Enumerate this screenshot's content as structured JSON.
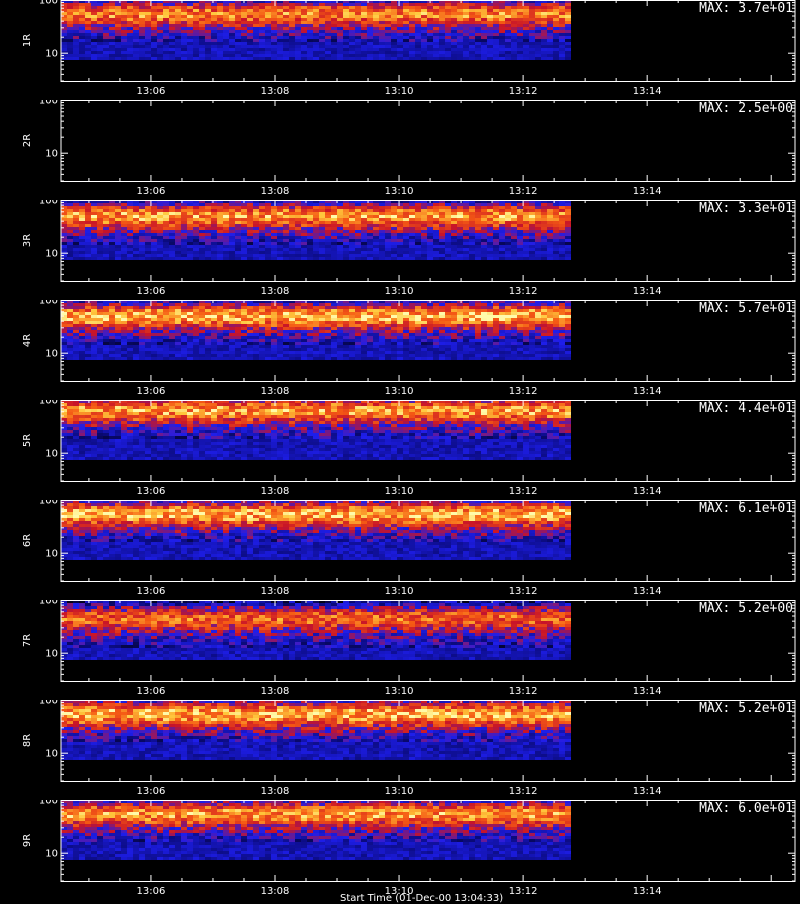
{
  "footer_text": "Start Time (01-Dec-00 13:04:33)",
  "chart_data": [
    {
      "type": "heatmap",
      "panel_label": "1R",
      "max_label": "MAX: 3.7e+01",
      "x_ticks": [
        "13:06",
        "13:08",
        "13:10",
        "13:12",
        "13:14"
      ],
      "y_ticks": [
        "100",
        "10"
      ],
      "yscale": "log",
      "xlim": [
        "13:04:33",
        "13:16:23"
      ],
      "ylim": [
        3,
        100
      ],
      "data_end": "13:12:43",
      "band_center": 60,
      "band_strength": 0.75
    },
    {
      "type": "heatmap",
      "panel_label": "2R",
      "max_label": "MAX: 2.5e+00",
      "x_ticks": [
        "13:06",
        "13:08",
        "13:10",
        "13:12",
        "13:14"
      ],
      "y_ticks": [
        "100",
        "10"
      ],
      "yscale": "log",
      "xlim": [
        "13:04:33",
        "13:16:23"
      ],
      "ylim": [
        3,
        100
      ],
      "data_end": "13:12:43",
      "band_center": 60,
      "band_strength": 0
    },
    {
      "type": "heatmap",
      "panel_label": "3R",
      "max_label": "MAX: 3.3e+01",
      "x_ticks": [
        "13:06",
        "13:08",
        "13:10",
        "13:12",
        "13:14"
      ],
      "y_ticks": [
        "100",
        "10"
      ],
      "yscale": "log",
      "xlim": [
        "13:04:33",
        "13:16:23"
      ],
      "ylim": [
        3,
        100
      ],
      "data_end": "13:12:43",
      "band_center": 55,
      "band_strength": 0.8
    },
    {
      "type": "heatmap",
      "panel_label": "4R",
      "max_label": "MAX: 5.7e+01",
      "x_ticks": [
        "13:06",
        "13:08",
        "13:10",
        "13:12",
        "13:14"
      ],
      "y_ticks": [
        "100",
        "10"
      ],
      "yscale": "log",
      "xlim": [
        "13:04:33",
        "13:16:23"
      ],
      "ylim": [
        3,
        100
      ],
      "data_end": "13:12:43",
      "band_center": 55,
      "band_strength": 0.85
    },
    {
      "type": "heatmap",
      "panel_label": "5R",
      "max_label": "MAX: 4.4e+01",
      "x_ticks": [
        "13:06",
        "13:08",
        "13:10",
        "13:12",
        "13:14"
      ],
      "y_ticks": [
        "100",
        "10"
      ],
      "yscale": "log",
      "xlim": [
        "13:04:33",
        "13:16:23"
      ],
      "ylim": [
        3,
        100
      ],
      "data_end": "13:12:43",
      "band_center": 70,
      "band_strength": 0.8
    },
    {
      "type": "heatmap",
      "panel_label": "6R",
      "max_label": "MAX: 6.1e+01",
      "x_ticks": [
        "13:06",
        "13:08",
        "13:10",
        "13:12",
        "13:14"
      ],
      "y_ticks": [
        "100",
        "10"
      ],
      "yscale": "log",
      "xlim": [
        "13:04:33",
        "13:16:23"
      ],
      "ylim": [
        3,
        100
      ],
      "data_end": "13:12:43",
      "band_center": 60,
      "band_strength": 0.85
    },
    {
      "type": "heatmap",
      "panel_label": "7R",
      "max_label": "MAX: 5.2e+00",
      "x_ticks": [
        "13:06",
        "13:08",
        "13:10",
        "13:12",
        "13:14"
      ],
      "y_ticks": [
        "100",
        "10"
      ],
      "yscale": "log",
      "xlim": [
        "13:04:33",
        "13:16:23"
      ],
      "ylim": [
        3,
        100
      ],
      "data_end": "13:12:43",
      "band_center": 50,
      "band_strength": 0.7
    },
    {
      "type": "heatmap",
      "panel_label": "8R",
      "max_label": "MAX: 5.2e+01",
      "x_ticks": [
        "13:06",
        "13:08",
        "13:10",
        "13:12",
        "13:14"
      ],
      "y_ticks": [
        "100",
        "10"
      ],
      "yscale": "log",
      "xlim": [
        "13:04:33",
        "13:16:23"
      ],
      "ylim": [
        3,
        100
      ],
      "data_end": "13:12:43",
      "band_center": 60,
      "band_strength": 0.85
    },
    {
      "type": "heatmap",
      "panel_label": "9R",
      "max_label": "MAX: 6.0e+01",
      "x_ticks": [
        "13:06",
        "13:08",
        "13:10",
        "13:12",
        "13:14"
      ],
      "y_ticks": [
        "100",
        "10"
      ],
      "yscale": "log",
      "xlim": [
        "13:04:33",
        "13:16:23"
      ],
      "ylim": [
        3,
        100
      ],
      "data_end": "13:12:43",
      "band_center": 60,
      "band_strength": 0.8
    }
  ]
}
